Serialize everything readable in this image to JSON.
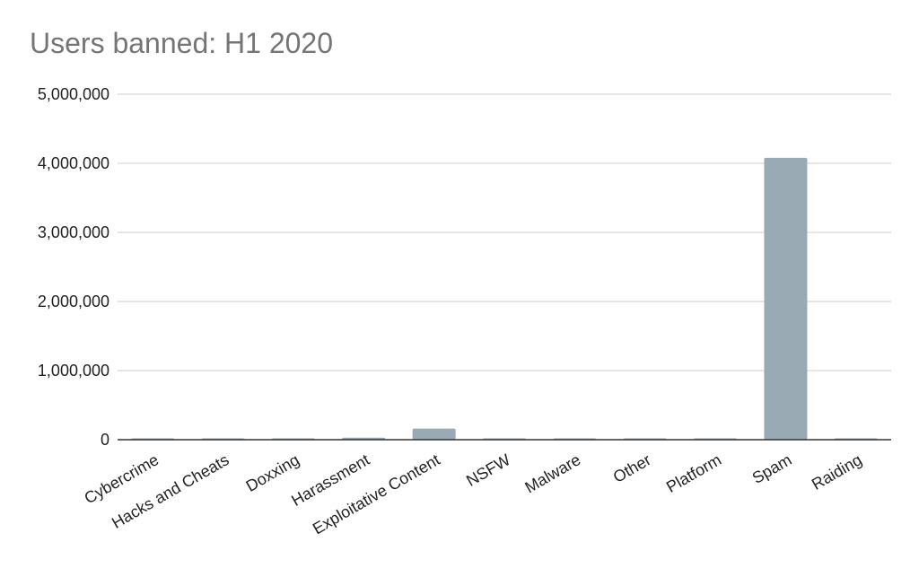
{
  "chart_data": {
    "type": "bar",
    "title": "Users banned: H1 2020",
    "xlabel": "",
    "ylabel": "",
    "categories": [
      "Cybercrime",
      "Hacks and Cheats",
      "Doxxing",
      "Harassment",
      "Exploitative Content",
      "NSFW",
      "Malware",
      "Other",
      "Platform",
      "Spam",
      "Raiding"
    ],
    "values": [
      5000,
      3000,
      2500,
      30000,
      160000,
      3000,
      1500,
      3000,
      3000,
      4080000,
      2000
    ],
    "ylim": [
      0,
      5000000
    ],
    "yticks": [
      0,
      1000000,
      2000000,
      3000000,
      4000000,
      5000000
    ],
    "ytick_labels": [
      "0",
      "1,000,000",
      "2,000,000",
      "3,000,000",
      "4,000,000",
      "5,000,000"
    ],
    "grid": true,
    "legend": "none",
    "colors": {
      "bar": "#9aaab4",
      "grid": "#cccccc",
      "axis": "#333333",
      "title": "#757575"
    }
  }
}
